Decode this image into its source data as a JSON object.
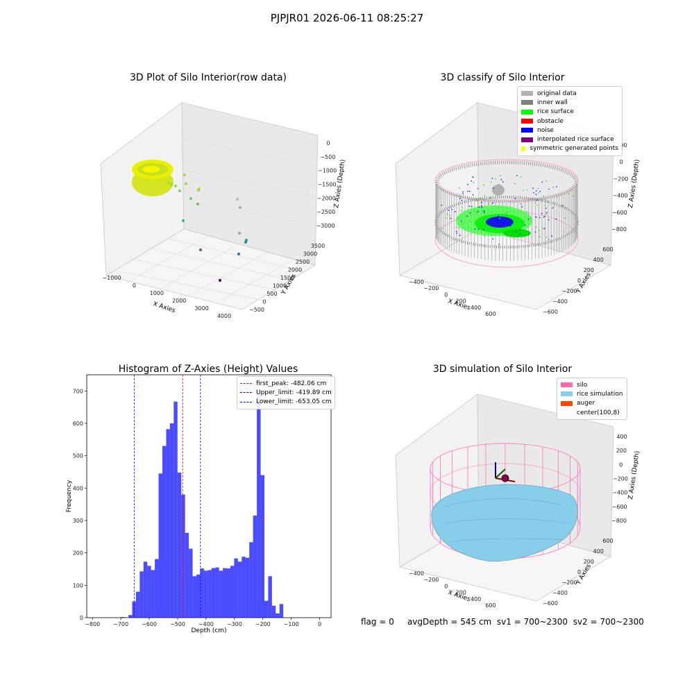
{
  "suptitle": "PJPJR01 2026-06-11 08:25:27",
  "panels": {
    "raw": {
      "title": "3D Plot of Silo Interior(row data)",
      "xlabel": "X Axies",
      "ylabel": "Y Axies",
      "zlabel": "Z Axies (Depth)",
      "xticks": [
        "−1000",
        "0",
        "1000",
        "2000",
        "3000",
        "4000"
      ],
      "yticks": [
        "−500",
        "0",
        "500",
        "1000",
        "1500",
        "2000",
        "2500",
        "3000",
        "3500"
      ],
      "zticks": [
        "0",
        "−500",
        "−1000",
        "−1500",
        "−2000",
        "−2500",
        "−3000"
      ]
    },
    "classify": {
      "title": "3D classify of Silo Interior",
      "xlabel": "X Axies",
      "ylabel": "Y Axies",
      "zlabel": "Z Axies (Depth)",
      "xticks": [
        "−400",
        "−200",
        "0",
        "200",
        "400",
        "600"
      ],
      "yticks": [
        "−600",
        "−400",
        "−200",
        "0",
        "200",
        "400",
        "600"
      ],
      "zticks": [
        "200",
        "0",
        "−200",
        "−400",
        "−600",
        "−800"
      ],
      "legend": [
        {
          "label": "original data",
          "color": "#b3b3b3"
        },
        {
          "label": "inner wall",
          "color": "#808080"
        },
        {
          "label": "rice surface",
          "color": "#00ff00"
        },
        {
          "label": "obstacle",
          "color": "#ff0000"
        },
        {
          "label": "noise",
          "color": "#0000ff"
        },
        {
          "label": "interpolated rice surface",
          "color": "#800080"
        },
        {
          "label": "symmetric generated points",
          "color": "#ffff00"
        }
      ]
    },
    "simulation": {
      "title": "3D simulation of Silo Interior",
      "xlabel": "X Axies",
      "ylabel": "Y Axies",
      "zlabel": "Z Axies (Depth)",
      "xticks": [
        "−400",
        "−200",
        "0",
        "200",
        "400",
        "600"
      ],
      "yticks": [
        "−600",
        "−400",
        "−200",
        "0",
        "200",
        "400",
        "600"
      ],
      "zticks": [
        "400",
        "200",
        "0",
        "−200",
        "−400",
        "−600",
        "−800"
      ],
      "legend": [
        {
          "label": "silo",
          "color": "#ff69b4"
        },
        {
          "label": "rice simulation",
          "color": "#87ceeb"
        },
        {
          "label": "auger",
          "color": "#ff4500"
        },
        {
          "label": "center(100,8)",
          "color": ""
        }
      ]
    },
    "footer": {
      "flag": "flag = 0",
      "avg_depth": "avgDepth = 545 cm",
      "sv1": "sv1 = 700~2300",
      "sv2": "sv2 = 700~2300"
    }
  },
  "chart_data": [
    {
      "type": "scatter",
      "title": "3D Plot of Silo Interior(row data)",
      "xlabel": "X Axies",
      "ylabel": "Y Axies",
      "zlabel": "Z Axies (Depth)",
      "xlim": [
        -1300,
        4300
      ],
      "ylim": [
        -600,
        3700
      ],
      "zlim": [
        -3400,
        100
      ],
      "colormap": "viridis"
    },
    {
      "type": "scatter",
      "title": "3D classify of Silo Interior",
      "xlabel": "X Axies",
      "ylabel": "Y Axies",
      "zlabel": "Z Axies (Depth)",
      "xlim": [
        -550,
        750
      ],
      "ylim": [
        -700,
        700
      ],
      "zlim": [
        -900,
        300
      ],
      "legend_position": "top-right"
    },
    {
      "type": "bar",
      "title": "Histogram of Z-Axies (Height) Values",
      "xlabel": "Depth (cm)",
      "ylabel": "Frequency",
      "xlim": [
        -820,
        40
      ],
      "ylim": [
        0,
        750
      ],
      "xticks": [
        -800,
        -700,
        -600,
        -500,
        -400,
        -300,
        -200,
        -100,
        0
      ],
      "yticks": [
        0,
        100,
        200,
        300,
        400,
        500,
        600,
        700
      ],
      "bin_width": 13.3,
      "bin_start": -700,
      "color": "#0000ff",
      "values": [
        2,
        0,
        8,
        50,
        80,
        143,
        173,
        160,
        147,
        181,
        445,
        530,
        582,
        600,
        667,
        448,
        380,
        262,
        213,
        128,
        133,
        152,
        145,
        147,
        153,
        155,
        145,
        153,
        152,
        160,
        183,
        173,
        188,
        185,
        233,
        315,
        702,
        440,
        52,
        128,
        37,
        13,
        42
      ],
      "series": [
        {
          "name": "",
          "values": []
        }
      ],
      "vlines": [
        {
          "name": "first_peak: -482.06 cm",
          "x": -482.06,
          "color": "#ff0000"
        },
        {
          "name": "Upper_limit: -419.89 cm",
          "x": -419.89,
          "color": "#0000ff"
        },
        {
          "name": "Lower_limit: -653.05 cm",
          "x": -653.05,
          "color": "#0000ff"
        }
      ],
      "legend_position": "top-right"
    },
    {
      "type": "scatter",
      "title": "3D simulation of Silo Interior",
      "xlabel": "X Axies",
      "ylabel": "Y Axies",
      "zlabel": "Z Axies (Depth)",
      "xlim": [
        -550,
        750
      ],
      "ylim": [
        -700,
        700
      ],
      "zlim": [
        -900,
        450
      ],
      "legend_position": "top-right"
    }
  ]
}
